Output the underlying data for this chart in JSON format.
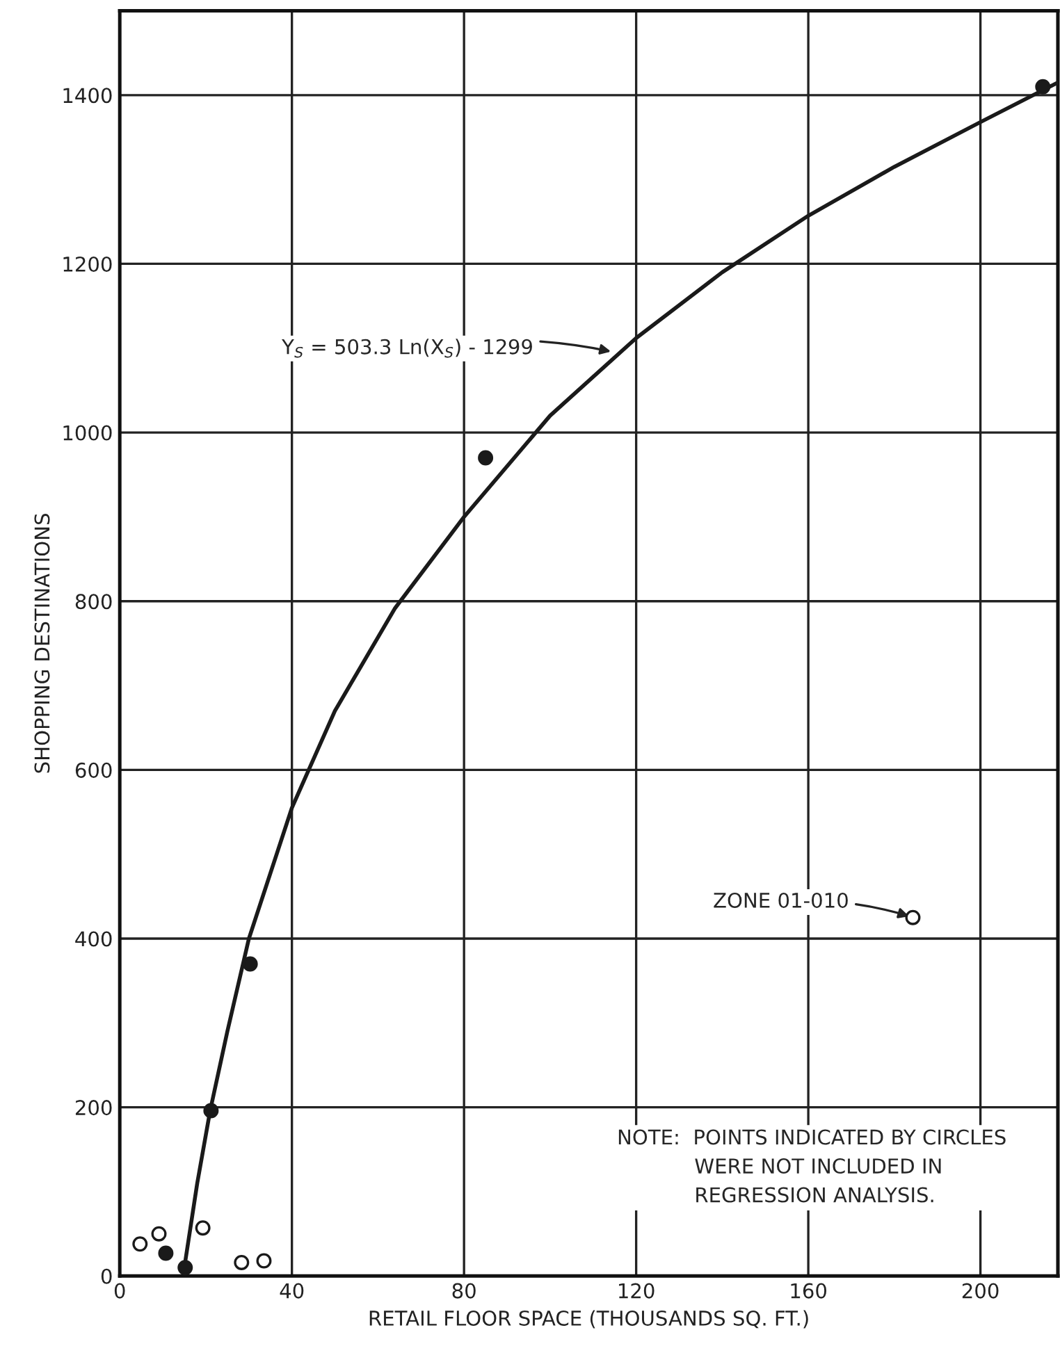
{
  "chart_data": {
    "type": "scatter",
    "xlabel": "RETAIL FLOOR SPACE (THOUSANDS SQ. FT.)",
    "ylabel": "SHOPPING DESTINATIONS",
    "xlim": [
      0,
      218
    ],
    "ylim": [
      0,
      1500
    ],
    "xticks": [
      0,
      40,
      80,
      120,
      160,
      200
    ],
    "yticks": [
      0,
      200,
      400,
      600,
      800,
      1000,
      1200,
      1400
    ],
    "grid": true,
    "marker": "circle",
    "series": [
      {
        "type": "line",
        "marker": "none",
        "color": "#1a1a1a",
        "x": [
          15,
          18,
          21,
          25,
          30,
          40,
          50,
          64,
          80,
          100,
          120,
          140,
          160,
          180,
          200,
          218
        ],
        "values": [
          10,
          110,
          196,
          290,
          400,
          555,
          670,
          792,
          900,
          1020,
          1112,
          1190,
          1257,
          1315,
          1368,
          1415
        ]
      },
      {
        "color": "#1a1a1a",
        "x": [
          10.7,
          15.2,
          21.2,
          30.3,
          85,
          214.5
        ],
        "values": [
          27,
          10,
          196,
          370,
          970,
          1410
        ]
      },
      {
        "color": "#ffffff",
        "x": [
          4.7,
          9.1,
          19.3,
          28.3,
          33.5,
          184.3
        ],
        "values": [
          38,
          50,
          57,
          16,
          18,
          425
        ]
      }
    ],
    "annotations": [
      {
        "text": "Y$_{S}$ = 503.3 Ln(X$_{S}$) - 1299",
        "x": 115,
        "y": 1095
      },
      {
        "text": "ZONE 01-010",
        "x": 184.3,
        "y": 425
      },
      "NOTE:  POINTS INDICATED BY CIRCLES\n            WERE NOT INCLUDED IN\n            REGRESSION ANALYSIS."
    ]
  }
}
